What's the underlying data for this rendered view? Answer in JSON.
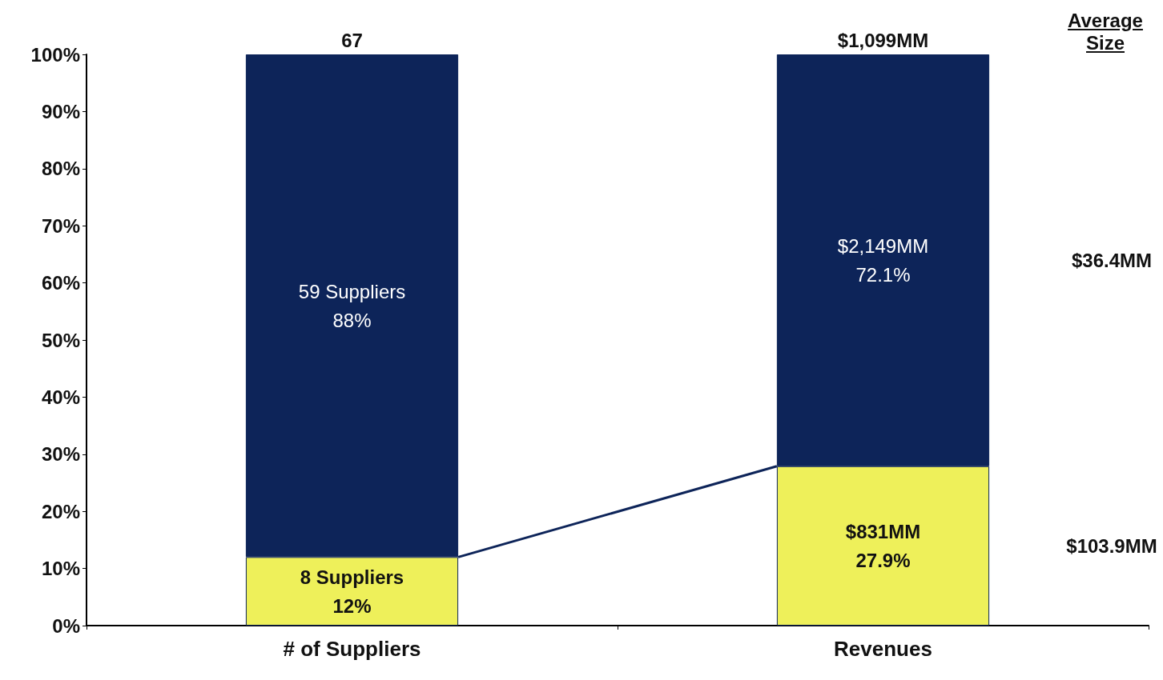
{
  "chart_data": {
    "type": "bar",
    "stacked": true,
    "categories": [
      "# of Suppliers",
      "Revenues"
    ],
    "series": [
      {
        "color": "#eef05a",
        "values": [
          12,
          27.9
        ],
        "value_labels": [
          "8 Suppliers\n12%",
          "$831MM\n27.9%"
        ]
      },
      {
        "color": "#0d2459",
        "values": [
          88,
          72.1
        ],
        "value_labels": [
          "59 Suppliers\n88%",
          "$2,149MM\n72.1%"
        ]
      }
    ],
    "ylim": [
      0,
      100
    ],
    "yticks": [
      {
        "value": 0,
        "label": "0%"
      },
      {
        "value": 10,
        "label": "10%"
      },
      {
        "value": 20,
        "label": "20%"
      },
      {
        "value": 30,
        "label": "30%"
      },
      {
        "value": 40,
        "label": "40%"
      },
      {
        "value": 50,
        "label": "50%"
      },
      {
        "value": 60,
        "label": "60%"
      },
      {
        "value": 70,
        "label": "70%"
      },
      {
        "value": 80,
        "label": "80%"
      },
      {
        "value": 90,
        "label": "90%"
      },
      {
        "value": 100,
        "label": "100%"
      }
    ],
    "annotations": [
      {
        "text": "67",
        "x": "# of Suppliers",
        "y": 100
      },
      {
        "text": "$1,099MM",
        "x": "Revenues",
        "y": 100
      },
      "Average Size",
      "$103.9MM",
      "$36.4MM"
    ],
    "grid": false
  }
}
